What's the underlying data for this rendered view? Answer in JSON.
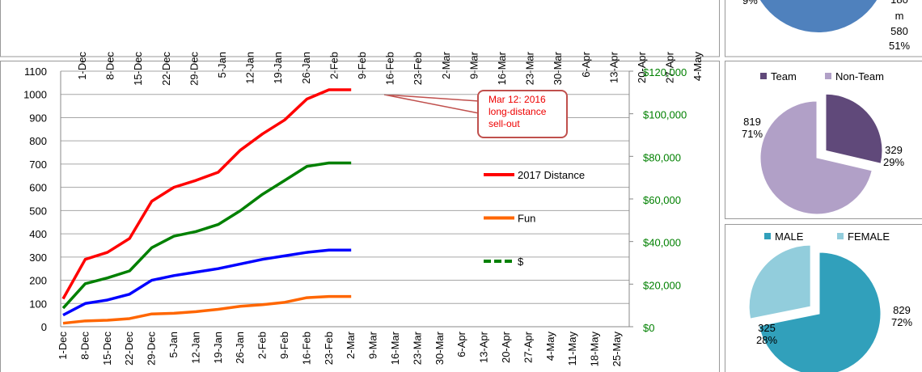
{
  "chart_data": [
    {
      "type": "axis-strip",
      "categories": [
        "1-Dec",
        "8-Dec",
        "15-Dec",
        "22-Dec",
        "29-Dec",
        "5-Jan",
        "12-Jan",
        "19-Jan",
        "26-Jan",
        "2-Feb",
        "9-Feb",
        "16-Feb",
        "23-Feb",
        "2-Mar",
        "9-Mar",
        "16-Mar",
        "23-Mar",
        "30-Mar",
        "6-Apr",
        "13-Apr",
        "20-Apr",
        "27-Apr",
        "4-May"
      ]
    },
    {
      "type": "line",
      "categories": [
        "1-Dec",
        "8-Dec",
        "15-Dec",
        "22-Dec",
        "29-Dec",
        "5-Jan",
        "12-Jan",
        "19-Jan",
        "26-Jan",
        "2-Feb",
        "9-Feb",
        "16-Feb",
        "23-Feb",
        "2-Mar",
        "9-Mar",
        "16-Mar",
        "23-Mar",
        "30-Mar",
        "6-Apr",
        "13-Apr",
        "20-Apr",
        "27-Apr",
        "4-May",
        "11-May",
        "18-May",
        "25-May"
      ],
      "series": [
        {
          "name": "2017 Distance",
          "color": "#ff0000",
          "values": [
            120,
            290,
            320,
            380,
            540,
            600,
            630,
            665,
            760,
            830,
            890,
            980,
            1020,
            1020,
            null,
            null,
            null,
            null,
            null,
            null,
            null,
            null,
            null,
            null,
            null,
            null
          ]
        },
        {
          "color": "#0000ff",
          "values": [
            50,
            100,
            115,
            140,
            200,
            220,
            235,
            250,
            270,
            290,
            305,
            320,
            330,
            330,
            null,
            null,
            null,
            null,
            null,
            null,
            null,
            null,
            null,
            null,
            null,
            null
          ]
        },
        {
          "name": "Fun",
          "color": "#ff6600",
          "values": [
            15,
            25,
            28,
            35,
            55,
            58,
            65,
            75,
            88,
            95,
            105,
            125,
            130,
            130,
            null,
            null,
            null,
            null,
            null,
            null,
            null,
            null,
            null,
            null,
            null,
            null
          ]
        },
        {
          "name": "$",
          "color": "#008000",
          "axis": "y2",
          "values": [
            8700,
            20200,
            22900,
            26200,
            37100,
            42500,
            44700,
            48000,
            54500,
            62200,
            68700,
            75300,
            76900,
            76900,
            null,
            null,
            null,
            null,
            null,
            null,
            null,
            null,
            null,
            null,
            null,
            null
          ]
        }
      ],
      "ylim": [
        0,
        1100
      ],
      "yticks": [
        0,
        100,
        200,
        300,
        400,
        500,
        600,
        700,
        800,
        900,
        1000,
        1100
      ],
      "y2lim": [
        0,
        120000
      ],
      "y2ticks": [
        {
          "value": 0,
          "label": "$0"
        },
        {
          "value": 20000,
          "label": "$20,000"
        },
        {
          "value": 40000,
          "label": "$40,000"
        },
        {
          "value": 60000,
          "label": "$60,000"
        },
        {
          "value": 80000,
          "label": "$80,000"
        },
        {
          "value": 100000,
          "label": "$100,000"
        },
        {
          "value": 120000,
          "label": "$120,000"
        }
      ],
      "grid": true,
      "annotation": "Mar 12: 2016 long-distance sell-out"
    },
    {
      "type": "pie",
      "categories": [
        "Team",
        "Non-Team"
      ],
      "values": [
        329,
        819
      ],
      "percent_labels": [
        "29%",
        "71%"
      ],
      "colors": [
        "#60497a",
        "#b1a0c7"
      ]
    },
    {
      "type": "pie",
      "categories": [
        "MALE",
        "FEMALE"
      ],
      "values": [
        829,
        325
      ],
      "percent_labels": [
        "72%",
        "28%"
      ],
      "colors": [
        "#31a0bb",
        "#92cddc"
      ]
    }
  ],
  "cropped_pie": {
    "texts": [
      "9%",
      "180",
      "m",
      "580",
      "51%"
    ],
    "color": "#4f81bd"
  }
}
